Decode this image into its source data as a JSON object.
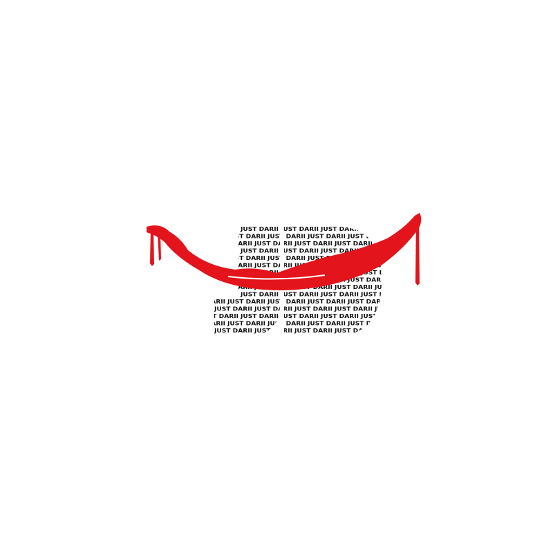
{
  "logo": {
    "pattern_text": "JUST DARII"
  }
}
